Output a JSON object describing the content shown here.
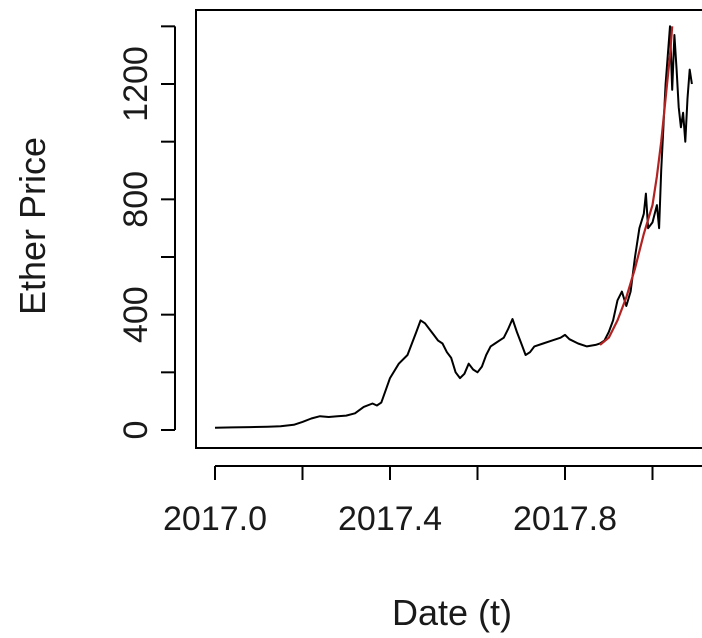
{
  "chart_data": {
    "type": "line",
    "title": "",
    "xlabel": "Date (t)",
    "ylabel": "Ether Price",
    "xlim": [
      2016.96,
      2018.1
    ],
    "ylim": [
      -20,
      1440
    ],
    "xticks": [
      2017.0,
      2017.2,
      2017.4,
      2017.6,
      2017.8,
      2018.0
    ],
    "xtick_labels": [
      "2017.0",
      "",
      "2017.4",
      "",
      "2017.8",
      ""
    ],
    "yticks": [
      0,
      200,
      400,
      600,
      800,
      1000,
      1200,
      1400
    ],
    "ytick_labels": [
      "0",
      "",
      "400",
      "",
      "800",
      "",
      "1200",
      ""
    ],
    "grid": false,
    "legend": "none",
    "series": [
      {
        "color": "#000000",
        "points": [
          [
            2017.0,
            8
          ],
          [
            2017.04,
            9
          ],
          [
            2017.08,
            10
          ],
          [
            2017.12,
            11
          ],
          [
            2017.15,
            13
          ],
          [
            2017.18,
            18
          ],
          [
            2017.2,
            28
          ],
          [
            2017.22,
            40
          ],
          [
            2017.24,
            48
          ],
          [
            2017.26,
            45
          ],
          [
            2017.28,
            48
          ],
          [
            2017.3,
            50
          ],
          [
            2017.32,
            58
          ],
          [
            2017.34,
            80
          ],
          [
            2017.36,
            92
          ],
          [
            2017.37,
            85
          ],
          [
            2017.38,
            95
          ],
          [
            2017.4,
            180
          ],
          [
            2017.42,
            230
          ],
          [
            2017.44,
            260
          ],
          [
            2017.45,
            300
          ],
          [
            2017.46,
            340
          ],
          [
            2017.47,
            380
          ],
          [
            2017.48,
            370
          ],
          [
            2017.49,
            350
          ],
          [
            2017.5,
            330
          ],
          [
            2017.51,
            310
          ],
          [
            2017.52,
            300
          ],
          [
            2017.53,
            270
          ],
          [
            2017.54,
            250
          ],
          [
            2017.55,
            200
          ],
          [
            2017.56,
            180
          ],
          [
            2017.57,
            195
          ],
          [
            2017.58,
            230
          ],
          [
            2017.59,
            210
          ],
          [
            2017.6,
            200
          ],
          [
            2017.61,
            220
          ],
          [
            2017.62,
            260
          ],
          [
            2017.63,
            290
          ],
          [
            2017.64,
            300
          ],
          [
            2017.65,
            310
          ],
          [
            2017.66,
            320
          ],
          [
            2017.67,
            350
          ],
          [
            2017.68,
            385
          ],
          [
            2017.69,
            340
          ],
          [
            2017.7,
            300
          ],
          [
            2017.71,
            260
          ],
          [
            2017.72,
            270
          ],
          [
            2017.73,
            290
          ],
          [
            2017.75,
            300
          ],
          [
            2017.77,
            310
          ],
          [
            2017.79,
            320
          ],
          [
            2017.8,
            330
          ],
          [
            2017.81,
            315
          ],
          [
            2017.83,
            300
          ],
          [
            2017.85,
            290
          ],
          [
            2017.87,
            295
          ],
          [
            2017.88,
            300
          ],
          [
            2017.89,
            310
          ],
          [
            2017.9,
            340
          ],
          [
            2017.91,
            380
          ],
          [
            2017.92,
            450
          ],
          [
            2017.93,
            480
          ],
          [
            2017.94,
            430
          ],
          [
            2017.95,
            480
          ],
          [
            2017.96,
            600
          ],
          [
            2017.97,
            700
          ],
          [
            2017.98,
            750
          ],
          [
            2017.985,
            820
          ],
          [
            2017.99,
            700
          ],
          [
            2018.0,
            720
          ],
          [
            2018.01,
            780
          ],
          [
            2018.015,
            700
          ],
          [
            2018.02,
            900
          ],
          [
            2018.03,
            1200
          ],
          [
            2018.035,
            1300
          ],
          [
            2018.04,
            1400
          ],
          [
            2018.045,
            1180
          ],
          [
            2018.05,
            1370
          ],
          [
            2018.055,
            1250
          ],
          [
            2018.06,
            1120
          ],
          [
            2018.065,
            1050
          ],
          [
            2018.07,
            1100
          ],
          [
            2018.075,
            1000
          ],
          [
            2018.08,
            1150
          ],
          [
            2018.085,
            1250
          ],
          [
            2018.09,
            1200
          ]
        ]
      },
      {
        "color": "#b22222",
        "points": [
          [
            2017.88,
            295
          ],
          [
            2017.9,
            320
          ],
          [
            2017.92,
            380
          ],
          [
            2017.94,
            460
          ],
          [
            2017.96,
            560
          ],
          [
            2017.98,
            680
          ],
          [
            2018.0,
            780
          ],
          [
            2018.01,
            880
          ],
          [
            2018.02,
            1000
          ],
          [
            2018.03,
            1150
          ],
          [
            2018.04,
            1300
          ],
          [
            2018.045,
            1400
          ]
        ]
      }
    ]
  }
}
